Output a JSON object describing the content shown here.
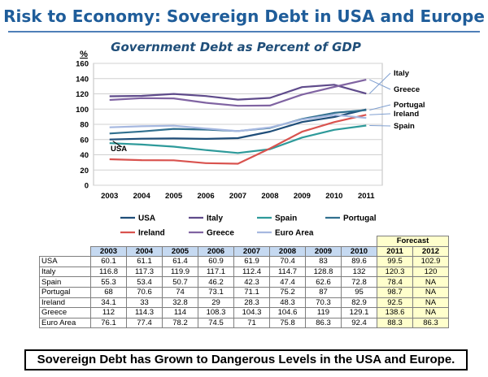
{
  "page": {
    "title": "Risk to Economy: Sovereign Debt in USA and Europe",
    "footer": "Sovereign Debt has Grown to Dangerous Levels in the USA and Europe."
  },
  "chart_data": {
    "type": "line",
    "title": "Government Debt as Percent of GDP",
    "ylabel": "%",
    "xlabel": "",
    "x": [
      "2003",
      "2004",
      "2005",
      "2006",
      "2007",
      "2008",
      "2009",
      "2010",
      "2011"
    ],
    "ylim": [
      0,
      160
    ],
    "yticks": [
      "0",
      "20",
      "40",
      "60",
      "80",
      "100",
      "120",
      "140",
      "160"
    ],
    "grid": true,
    "legend_position": "bottom",
    "series": [
      {
        "name": "USA",
        "color": "#1f4e79",
        "values": [
          60.1,
          61.1,
          61.4,
          60.9,
          61.9,
          70.4,
          83,
          89.6,
          99.5
        ]
      },
      {
        "name": "Italy",
        "color": "#5f4b8b",
        "values": [
          116.8,
          117.3,
          119.9,
          117.1,
          112.4,
          114.7,
          128.8,
          132,
          120.3
        ]
      },
      {
        "name": "Spain",
        "color": "#2e9a9a",
        "values": [
          55.3,
          53.4,
          50.7,
          46.2,
          42.3,
          47.4,
          62.6,
          72.8,
          78.4
        ]
      },
      {
        "name": "Portugal",
        "color": "#31708f",
        "values": [
          68,
          70.6,
          74,
          73.1,
          71.1,
          75.2,
          87,
          95,
          98.7
        ]
      },
      {
        "name": "Ireland",
        "color": "#d9534f",
        "values": [
          34.1,
          33,
          32.8,
          29,
          28.3,
          48.3,
          70.3,
          82.9,
          92.5
        ]
      },
      {
        "name": "Greece",
        "color": "#8064a2",
        "values": [
          112,
          114.3,
          114,
          108.3,
          104.3,
          104.6,
          119,
          129.1,
          138.6
        ]
      },
      {
        "name": "Euro Area",
        "color": "#a6b8e0",
        "values": [
          76.1,
          77.4,
          78.2,
          74.5,
          71,
          75.8,
          86.3,
          92.4,
          88.3
        ]
      }
    ],
    "annotations": [
      "Italy",
      "Greece",
      "Portugal",
      "Ireland",
      "Spain",
      "USA"
    ],
    "table": {
      "forecast_label": "Forecast",
      "years": [
        "2003",
        "2004",
        "2005",
        "2006",
        "2007",
        "2008",
        "2009",
        "2010",
        "2011",
        "2012"
      ],
      "rows": [
        {
          "label": "USA",
          "values": [
            "60.1",
            "61.1",
            "61.4",
            "60.9",
            "61.9",
            "70.4",
            "83",
            "89.6",
            "99.5",
            "102.9"
          ]
        },
        {
          "label": "Italy",
          "values": [
            "116.8",
            "117.3",
            "119.9",
            "117.1",
            "112.4",
            "114.7",
            "128.8",
            "132",
            "120.3",
            "120"
          ]
        },
        {
          "label": "Spain",
          "values": [
            "55.3",
            "53.4",
            "50.7",
            "46.2",
            "42.3",
            "47.4",
            "62.6",
            "72.8",
            "78.4",
            "NA"
          ]
        },
        {
          "label": "Portugal",
          "values": [
            "68",
            "70.6",
            "74",
            "73.1",
            "71.1",
            "75.2",
            "87",
            "95",
            "98.7",
            "NA"
          ]
        },
        {
          "label": "Ireland",
          "values": [
            "34.1",
            "33",
            "32.8",
            "29",
            "28.3",
            "48.3",
            "70.3",
            "82.9",
            "92.5",
            "NA"
          ]
        },
        {
          "label": "Greece",
          "values": [
            "112",
            "114.3",
            "114",
            "108.3",
            "104.3",
            "104.6",
            "119",
            "129.1",
            "138.6",
            "NA"
          ]
        },
        {
          "label": "Euro Area",
          "values": [
            "76.1",
            "77.4",
            "78.2",
            "74.5",
            "71",
            "75.8",
            "86.3",
            "92.4",
            "88.3",
            "86.3"
          ]
        }
      ]
    }
  }
}
